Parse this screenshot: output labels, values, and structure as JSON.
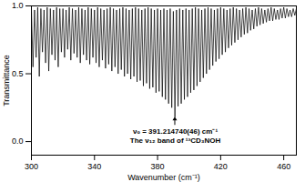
{
  "chart_data": {
    "type": "line",
    "x_label": "Wavenumber (cm⁻¹)",
    "y_label": "Transmittance",
    "color": "#000000",
    "xlim": [
      300,
      468
    ],
    "xticks": [
      300,
      340,
      380,
      420,
      460
    ],
    "ylim": [
      -0.1,
      1.0
    ],
    "yticks": [
      {
        "value": 0,
        "label": "0.0"
      },
      {
        "value": 0.5,
        "label": "0.5"
      },
      {
        "value": 1.0,
        "label": "1.0"
      }
    ],
    "annotation": {
      "x": 391.21474,
      "y": 0.18,
      "text": [
        "ν₀ = 391.214740(46) cm⁻¹",
        "The ν₁₂ band of ¹³CD₃NOH"
      ]
    },
    "x": [
      300,
      301,
      302,
      303,
      304,
      305,
      306,
      307,
      308,
      309,
      310,
      311,
      312,
      313,
      314,
      315,
      316,
      317,
      318,
      319,
      320,
      321,
      322,
      323,
      324,
      325,
      326,
      327,
      328,
      329,
      330,
      331,
      332,
      333,
      334,
      335,
      336,
      337,
      338,
      339,
      340,
      341,
      342,
      343,
      344,
      345,
      346,
      347,
      348,
      349,
      350,
      351,
      352,
      353,
      354,
      355,
      356,
      357,
      358,
      359,
      360,
      361,
      362,
      363,
      364,
      365,
      366,
      367,
      368,
      369,
      370,
      371,
      372,
      373,
      374,
      375,
      376,
      377,
      378,
      379,
      380,
      381,
      382,
      383,
      384,
      385,
      386,
      387,
      388,
      389,
      390,
      391,
      392,
      393,
      394,
      395,
      396,
      397,
      398,
      399,
      400,
      401,
      402,
      403,
      404,
      405,
      406,
      407,
      408,
      409,
      410,
      411,
      412,
      413,
      414,
      415,
      416,
      417,
      418,
      419,
      420,
      421,
      422,
      423,
      424,
      425,
      426,
      427,
      428,
      429,
      430,
      431,
      432,
      433,
      434,
      435,
      436,
      437,
      438,
      439,
      440,
      441,
      442,
      443,
      444,
      445,
      446,
      447,
      448,
      449,
      450,
      451,
      452,
      453,
      454,
      455,
      456,
      457,
      458,
      459,
      460,
      461,
      462,
      463,
      464,
      465,
      466,
      467,
      468
    ],
    "values": [
      0.98,
      0.55,
      0.97,
      0.62,
      0.99,
      0.48,
      0.98,
      0.66,
      0.97,
      0.58,
      0.99,
      0.52,
      0.98,
      0.64,
      0.97,
      0.6,
      0.99,
      0.55,
      0.98,
      0.66,
      0.98,
      0.62,
      0.97,
      0.68,
      0.99,
      0.6,
      0.98,
      0.65,
      0.97,
      0.62,
      0.99,
      0.58,
      0.98,
      0.64,
      0.97,
      0.6,
      0.99,
      0.57,
      0.98,
      0.62,
      0.97,
      0.58,
      0.99,
      0.55,
      0.98,
      0.6,
      0.97,
      0.54,
      0.98,
      0.57,
      0.99,
      0.52,
      0.98,
      0.55,
      0.97,
      0.5,
      0.98,
      0.53,
      0.99,
      0.48,
      0.98,
      0.5,
      0.97,
      0.46,
      0.98,
      0.48,
      0.99,
      0.44,
      0.98,
      0.45,
      0.97,
      0.41,
      0.98,
      0.43,
      0.99,
      0.39,
      0.98,
      0.4,
      0.97,
      0.36,
      0.98,
      0.37,
      0.97,
      0.33,
      0.98,
      0.31,
      0.97,
      0.28,
      0.98,
      0.25,
      0.96,
      0.18,
      0.97,
      0.26,
      0.98,
      0.28,
      0.97,
      0.31,
      0.98,
      0.33,
      0.97,
      0.36,
      0.98,
      0.38,
      0.99,
      0.41,
      0.98,
      0.44,
      0.97,
      0.47,
      0.98,
      0.5,
      0.99,
      0.53,
      0.98,
      0.56,
      0.97,
      0.59,
      0.98,
      0.61,
      0.99,
      0.64,
      0.98,
      0.66,
      0.97,
      0.69,
      0.98,
      0.71,
      0.99,
      0.73,
      0.98,
      0.75,
      0.97,
      0.77,
      0.98,
      0.79,
      0.99,
      0.8,
      0.98,
      0.82,
      0.97,
      0.83,
      0.98,
      0.85,
      0.99,
      0.86,
      0.98,
      0.87,
      0.97,
      0.88,
      0.98,
      0.89,
      0.99,
      0.89,
      0.98,
      0.9,
      0.97,
      0.9,
      0.98,
      0.91,
      0.99,
      0.91,
      0.98,
      0.92,
      0.97,
      0.92,
      0.98,
      0.93,
      0.98
    ]
  }
}
